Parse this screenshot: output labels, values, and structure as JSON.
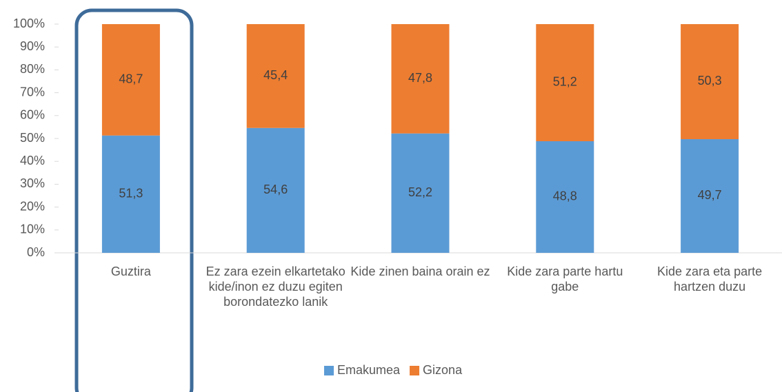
{
  "chart_data": {
    "type": "stacked_bar",
    "categories": [
      "Guztira",
      "Ez zara ezein elkartetako kide/inon ez duzu egiten borondatezko lanik",
      "Kide zinen baina orain ez",
      "Kide zara parte hartu gabe",
      "Kide zara eta parte hartzen duzu"
    ],
    "series": [
      {
        "name": "Emakumea",
        "color": "#5b9bd5",
        "values": [
          51.3,
          54.6,
          52.2,
          48.8,
          49.7
        ],
        "value_labels": [
          "51,3",
          "54,6",
          "52,2",
          "48,8",
          "49,7"
        ]
      },
      {
        "name": "Gizona",
        "color": "#ed7d31",
        "values": [
          48.7,
          45.4,
          47.8,
          51.2,
          50.3
        ],
        "value_labels": [
          "48,7",
          "45,4",
          "47,8",
          "51,2",
          "50,3"
        ]
      }
    ],
    "ylim": [
      0,
      100
    ],
    "yticks": [
      {
        "value": 0,
        "label": "0%"
      },
      {
        "value": 10,
        "label": "10%"
      },
      {
        "value": 20,
        "label": "20%"
      },
      {
        "value": 30,
        "label": "30%"
      },
      {
        "value": 40,
        "label": "40%"
      },
      {
        "value": 50,
        "label": "50%"
      },
      {
        "value": 60,
        "label": "60%"
      },
      {
        "value": 70,
        "label": "70%"
      },
      {
        "value": 80,
        "label": "80%"
      },
      {
        "value": 90,
        "label": "90%"
      },
      {
        "value": 100,
        "label": "100%"
      }
    ],
    "grid": false,
    "legend": "bottom"
  }
}
